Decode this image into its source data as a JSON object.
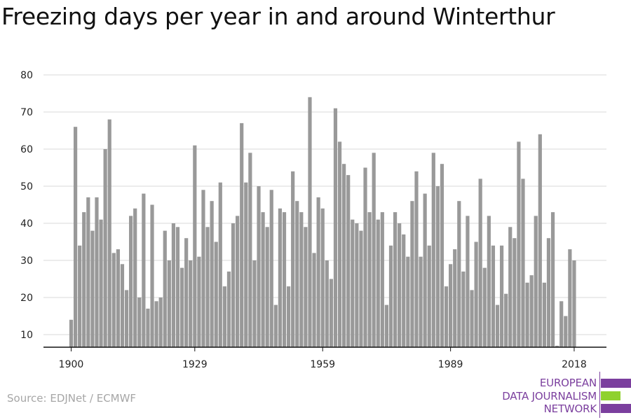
{
  "title": "Freezing days per year in and around Winterthur",
  "source": "Source: EDJNet / ECMWF",
  "logo": {
    "line1": "EUROPEAN",
    "line2": "DATA JOURNALISM",
    "line3": "NETWORK",
    "colors": {
      "purple": "#7b3f9e",
      "green": "#8fd12e"
    }
  },
  "chart_data": {
    "type": "bar",
    "title": "Freezing days per year in and around Winterthur",
    "xlabel": "",
    "ylabel": "",
    "x": [
      1900,
      1901,
      1902,
      1903,
      1904,
      1905,
      1906,
      1907,
      1908,
      1909,
      1910,
      1911,
      1912,
      1913,
      1914,
      1915,
      1916,
      1917,
      1918,
      1919,
      1920,
      1921,
      1922,
      1923,
      1924,
      1925,
      1926,
      1927,
      1928,
      1929,
      1930,
      1931,
      1932,
      1933,
      1934,
      1935,
      1936,
      1937,
      1938,
      1939,
      1940,
      1941,
      1942,
      1943,
      1944,
      1945,
      1946,
      1947,
      1948,
      1949,
      1950,
      1951,
      1952,
      1953,
      1954,
      1955,
      1956,
      1957,
      1958,
      1959,
      1960,
      1961,
      1962,
      1963,
      1964,
      1965,
      1966,
      1967,
      1968,
      1969,
      1970,
      1971,
      1972,
      1973,
      1974,
      1975,
      1976,
      1977,
      1978,
      1979,
      1980,
      1981,
      1982,
      1983,
      1984,
      1985,
      1986,
      1987,
      1988,
      1989,
      1990,
      1991,
      1992,
      1993,
      1994,
      1995,
      1996,
      1997,
      1998,
      1999,
      2000,
      2001,
      2002,
      2003,
      2004,
      2005,
      2006,
      2007,
      2008,
      2009,
      2010,
      2011,
      2012,
      2013,
      2014,
      2015,
      2016,
      2017,
      2018
    ],
    "values": [
      14,
      66,
      34,
      43,
      47,
      38,
      47,
      41,
      60,
      68,
      32,
      33,
      29,
      22,
      42,
      44,
      20,
      48,
      17,
      45,
      19,
      20,
      38,
      30,
      40,
      39,
      28,
      36,
      30,
      61,
      31,
      49,
      39,
      46,
      35,
      51,
      23,
      27,
      40,
      42,
      67,
      51,
      59,
      30,
      50,
      43,
      39,
      49,
      18,
      44,
      43,
      23,
      54,
      46,
      43,
      39,
      74,
      32,
      47,
      44,
      30,
      25,
      71,
      62,
      56,
      53,
      41,
      40,
      38,
      55,
      43,
      59,
      41,
      43,
      18,
      34,
      43,
      40,
      37,
      31,
      46,
      54,
      31,
      48,
      34,
      59,
      50,
      56,
      23,
      29,
      33,
      46,
      27,
      42,
      22,
      35,
      52,
      28,
      42,
      34,
      18,
      34,
      21,
      39,
      36,
      62,
      52,
      24,
      26,
      42,
      64,
      24,
      36,
      43,
      7,
      19,
      15,
      33,
      30
    ],
    "ylim": [
      6,
      80
    ],
    "yticks": [
      10,
      20,
      30,
      40,
      50,
      60,
      70,
      80
    ],
    "xticks": [
      1900,
      1929,
      1959,
      1989,
      2018
    ],
    "grid": true,
    "colors": {
      "bar": "#999999",
      "grid": "#d9d9d9",
      "axis": "#111111"
    }
  }
}
